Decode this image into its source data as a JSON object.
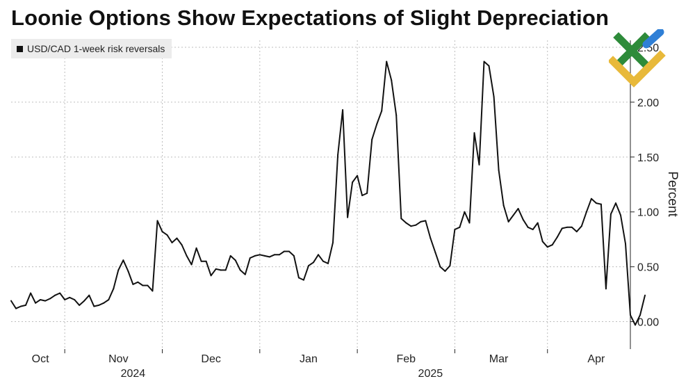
{
  "header": {
    "title": "Loonie Options Show Expectations of Slight Depreciation"
  },
  "legend": {
    "label": "USD/CAD 1-week risk reversals",
    "swatch_color": "#111111"
  },
  "logo": {
    "icon": "logo-icon",
    "colors": [
      "#2e8b3a",
      "#2f7fd6",
      "#e8b93a"
    ]
  },
  "chart_data": {
    "type": "line",
    "title": "Loonie Options Show Expectations of Slight Depreciation",
    "xlabel": "",
    "ylabel": "Percent",
    "ylim": [
      -0.25,
      2.5
    ],
    "y_ticks": [
      0,
      0.5,
      1,
      1.5,
      2,
      2.5
    ],
    "y_tick_labels": [
      "0.00",
      "0.50",
      "1.00",
      "1.50",
      "2.00",
      "2.50"
    ],
    "x_range": [
      0,
      127
    ],
    "x_ticks": [
      {
        "label": "Oct",
        "index": 6
      },
      {
        "label": "Nov",
        "index": 22
      },
      {
        "label": "Dec",
        "index": 41
      },
      {
        "label": "Jan",
        "index": 61
      },
      {
        "label": "Feb",
        "index": 81
      },
      {
        "label": "Mar",
        "index": 100
      },
      {
        "label": "Apr",
        "index": 120
      }
    ],
    "month_boundaries": [
      11,
      31,
      51,
      71,
      91,
      110
    ],
    "year_labels": [
      {
        "label": "2024",
        "index": 25
      },
      {
        "label": "2025",
        "index": 86
      }
    ],
    "grid": true,
    "legend_position": "top-left",
    "series": [
      {
        "name": "USD/CAD 1-week risk reversals",
        "values": [
          0.19,
          0.12,
          0.14,
          0.15,
          0.26,
          0.17,
          0.2,
          0.19,
          0.21,
          0.24,
          0.26,
          0.2,
          0.22,
          0.2,
          0.15,
          0.19,
          0.24,
          0.14,
          0.15,
          0.17,
          0.2,
          0.3,
          0.47,
          0.56,
          0.46,
          0.34,
          0.36,
          0.33,
          0.33,
          0.28,
          0.92,
          0.82,
          0.79,
          0.72,
          0.76,
          0.7,
          0.6,
          0.52,
          0.67,
          0.55,
          0.55,
          0.42,
          0.48,
          0.47,
          0.47,
          0.6,
          0.56,
          0.47,
          0.43,
          0.58,
          0.6,
          0.61,
          0.6,
          0.59,
          0.61,
          0.61,
          0.64,
          0.64,
          0.6,
          0.4,
          0.38,
          0.51,
          0.54,
          0.61,
          0.55,
          0.53,
          0.72,
          1.52,
          1.93,
          0.95,
          1.27,
          1.33,
          1.15,
          1.17,
          1.66,
          1.8,
          1.92,
          2.37,
          2.2,
          1.88,
          0.94,
          0.9,
          0.87,
          0.88,
          0.91,
          0.92,
          0.76,
          0.63,
          0.5,
          0.46,
          0.51,
          0.84,
          0.86,
          1.0,
          0.9,
          1.72,
          1.43,
          2.37,
          2.33,
          2.05,
          1.38,
          1.06,
          0.91,
          0.97,
          1.03,
          0.93,
          0.86,
          0.84,
          0.9,
          0.73,
          0.68,
          0.7,
          0.77,
          0.85,
          0.86,
          0.86,
          0.82,
          0.87,
          1.0,
          1.12,
          1.08,
          1.07,
          0.3,
          0.98,
          1.08,
          0.97,
          0.71,
          0.06,
          -0.03,
          0.06,
          0.24
        ]
      }
    ]
  }
}
